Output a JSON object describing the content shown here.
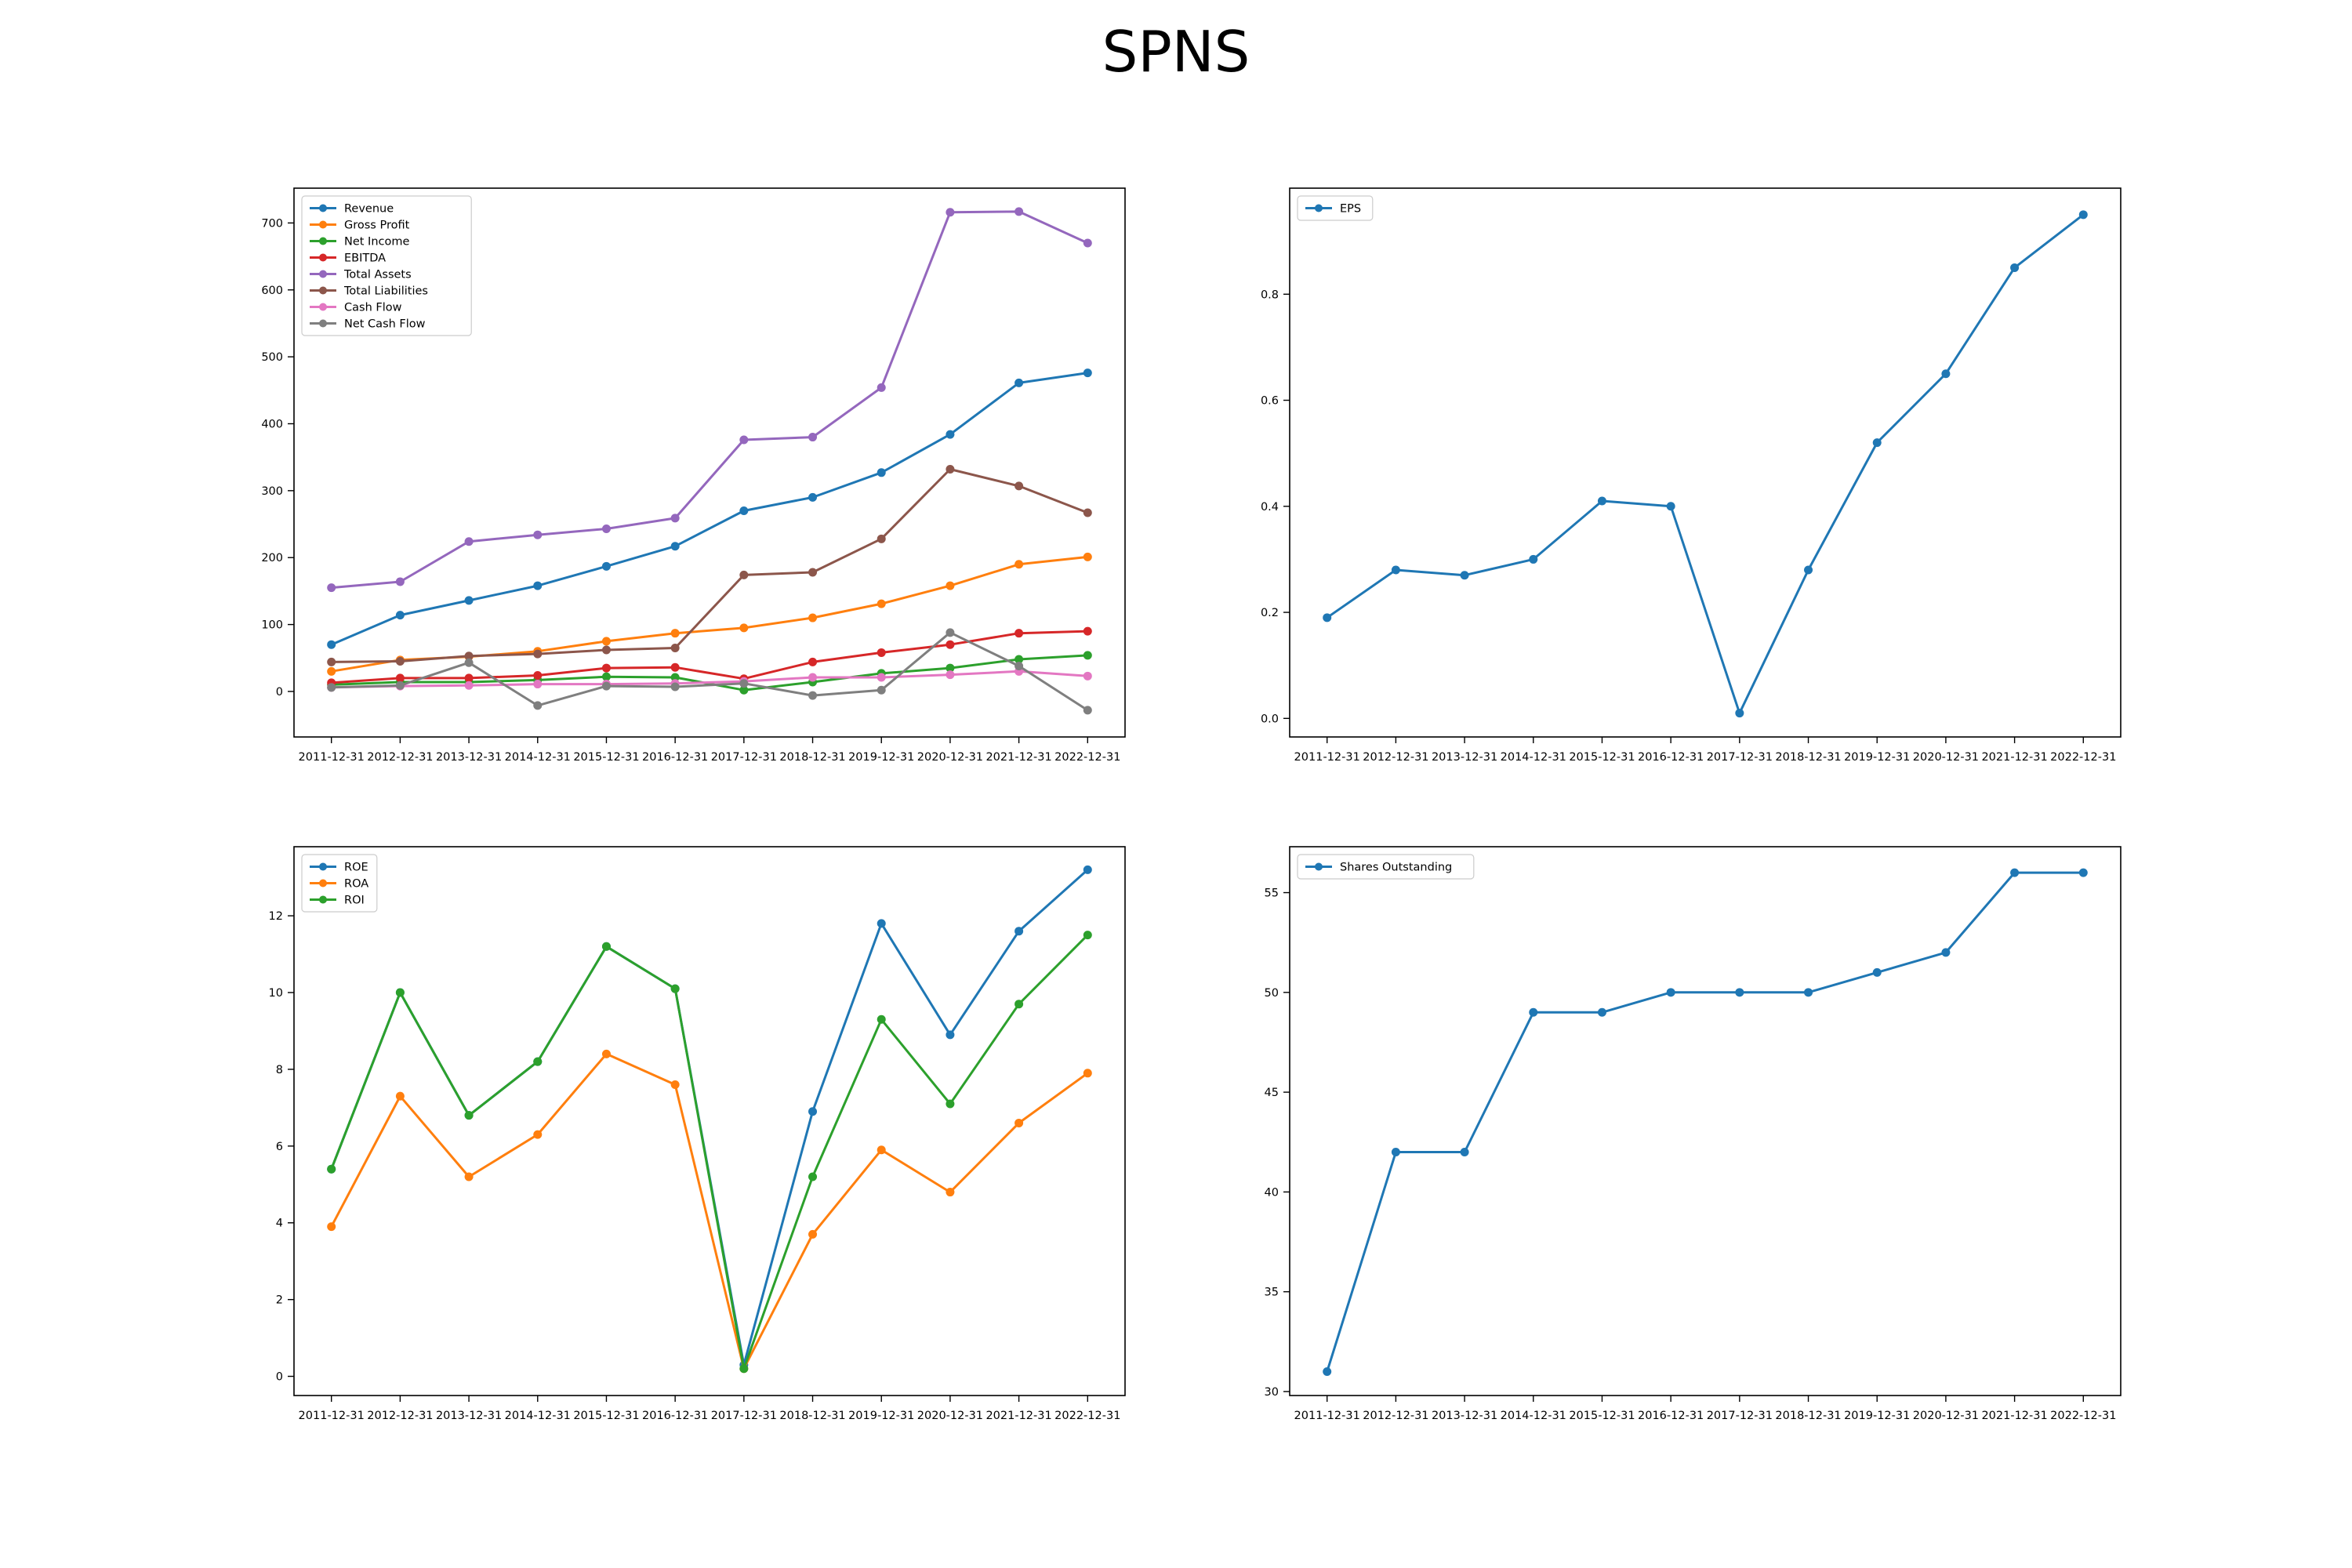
{
  "title": "SPNS",
  "colors": {
    "blue": "#1f77b4",
    "orange": "#ff7f0e",
    "green": "#2ca02c",
    "red": "#d62728",
    "purple": "#9467bd",
    "brown": "#8c564b",
    "pink": "#e377c2",
    "gray": "#7f7f7f"
  },
  "chart_data": [
    {
      "type": "line",
      "title": "",
      "xlabel": "",
      "ylabel": "",
      "categories": [
        "2011-12-31",
        "2012-12-31",
        "2013-12-31",
        "2014-12-31",
        "2015-12-31",
        "2016-12-31",
        "2017-12-31",
        "2018-12-31",
        "2019-12-31",
        "2020-12-31",
        "2021-12-31",
        "2022-12-31"
      ],
      "ylim": [
        -68,
        752
      ],
      "yticks": [
        0,
        100,
        200,
        300,
        400,
        500,
        600,
        700
      ],
      "legend": "top-left",
      "grid": false,
      "series": [
        {
          "name": "Revenue",
          "color": "#1f77b4",
          "values": [
            70,
            114,
            136,
            158,
            187,
            217,
            270,
            290,
            327,
            384,
            461,
            476
          ]
        },
        {
          "name": "Gross Profit",
          "color": "#ff7f0e",
          "values": [
            30,
            47,
            52,
            60,
            75,
            87,
            95,
            110,
            131,
            158,
            190,
            201
          ]
        },
        {
          "name": "Net Income",
          "color": "#2ca02c",
          "values": [
            10,
            14,
            14,
            17,
            22,
            21,
            2,
            14,
            27,
            35,
            48,
            54
          ]
        },
        {
          "name": "EBITDA",
          "color": "#d62728",
          "values": [
            13,
            20,
            20,
            24,
            35,
            36,
            19,
            44,
            58,
            70,
            87,
            90
          ]
        },
        {
          "name": "Total Assets",
          "color": "#9467bd",
          "values": [
            155,
            164,
            224,
            234,
            243,
            259,
            376,
            380,
            454,
            716,
            717,
            670
          ]
        },
        {
          "name": "Total Liabilities",
          "color": "#8c564b",
          "values": [
            44,
            45,
            53,
            56,
            62,
            65,
            174,
            178,
            228,
            332,
            307,
            267
          ]
        },
        {
          "name": "Cash Flow",
          "color": "#e377c2",
          "values": [
            6,
            8,
            9,
            11,
            11,
            12,
            15,
            21,
            21,
            25,
            30,
            23
          ]
        },
        {
          "name": "Net Cash Flow",
          "color": "#7f7f7f",
          "values": [
            6,
            9,
            43,
            -21,
            8,
            7,
            12,
            -6,
            2,
            88,
            38,
            -28
          ]
        }
      ]
    },
    {
      "type": "line",
      "title": "",
      "xlabel": "",
      "ylabel": "",
      "categories": [
        "2011-12-31",
        "2012-12-31",
        "2013-12-31",
        "2014-12-31",
        "2015-12-31",
        "2016-12-31",
        "2017-12-31",
        "2018-12-31",
        "2019-12-31",
        "2020-12-31",
        "2021-12-31",
        "2022-12-31"
      ],
      "ylim": [
        -0.035,
        1.0
      ],
      "yticks": [
        0.0,
        0.2,
        0.4,
        0.6,
        0.8
      ],
      "ytick_labels": [
        "0.0",
        "0.2",
        "0.4",
        "0.6",
        "0.8"
      ],
      "legend": "top-left",
      "grid": false,
      "series": [
        {
          "name": "EPS",
          "color": "#1f77b4",
          "values": [
            0.19,
            0.28,
            0.27,
            0.3,
            0.41,
            0.4,
            0.01,
            0.28,
            0.52,
            0.65,
            0.85,
            0.95
          ]
        }
      ]
    },
    {
      "type": "line",
      "title": "",
      "xlabel": "",
      "ylabel": "",
      "categories": [
        "2011-12-31",
        "2012-12-31",
        "2013-12-31",
        "2014-12-31",
        "2015-12-31",
        "2016-12-31",
        "2017-12-31",
        "2018-12-31",
        "2019-12-31",
        "2020-12-31",
        "2021-12-31",
        "2022-12-31"
      ],
      "ylim": [
        -0.5,
        13.8
      ],
      "yticks": [
        0,
        2,
        4,
        6,
        8,
        10,
        12
      ],
      "legend": "top-left",
      "grid": false,
      "series": [
        {
          "name": "ROE",
          "color": "#1f77b4",
          "values": [
            5.4,
            10.0,
            6.8,
            8.2,
            11.2,
            10.1,
            0.3,
            6.9,
            11.8,
            8.9,
            11.6,
            13.2
          ]
        },
        {
          "name": "ROA",
          "color": "#ff7f0e",
          "values": [
            3.9,
            7.3,
            5.2,
            6.3,
            8.4,
            7.6,
            0.2,
            3.7,
            5.9,
            4.8,
            6.6,
            7.9
          ]
        },
        {
          "name": "ROI",
          "color": "#2ca02c",
          "values": [
            5.4,
            10.0,
            6.8,
            8.2,
            11.2,
            10.1,
            0.2,
            5.2,
            9.3,
            7.1,
            9.7,
            11.5
          ]
        }
      ]
    },
    {
      "type": "line",
      "title": "",
      "xlabel": "",
      "ylabel": "",
      "categories": [
        "2011-12-31",
        "2012-12-31",
        "2013-12-31",
        "2014-12-31",
        "2015-12-31",
        "2016-12-31",
        "2017-12-31",
        "2018-12-31",
        "2019-12-31",
        "2020-12-31",
        "2021-12-31",
        "2022-12-31"
      ],
      "ylim": [
        29.8,
        57.3
      ],
      "yticks": [
        30,
        35,
        40,
        45,
        50,
        55
      ],
      "legend": "top-left",
      "grid": false,
      "series": [
        {
          "name": "Shares Outstanding",
          "color": "#1f77b4",
          "values": [
            31,
            42,
            42,
            49,
            49,
            50,
            50,
            50,
            51,
            52,
            56,
            56
          ]
        }
      ]
    }
  ]
}
